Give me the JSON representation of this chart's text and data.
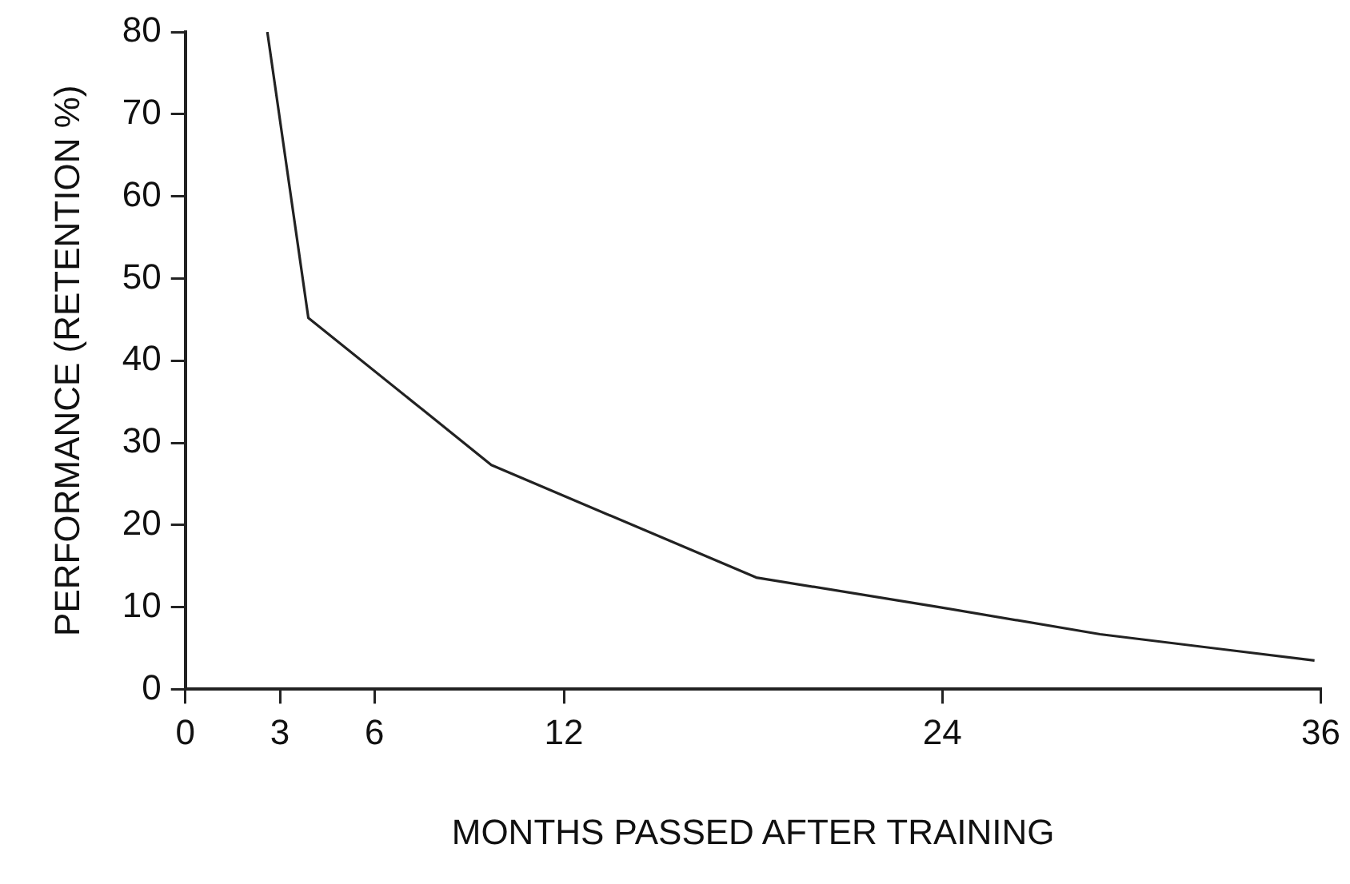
{
  "chart_data": {
    "type": "line",
    "xlabel": "MONTHS PASSED AFTER TRAINING",
    "ylabel": "PERFORMANCE (RETENTION %)",
    "x": [
      2.6,
      3.9,
      7.5,
      9.7,
      18.1,
      23.9,
      29.0,
      35.8
    ],
    "series": [
      {
        "color": "#222222",
        "values": [
          80,
          45.2,
          34.1,
          27.3,
          13.6,
          10.0,
          6.7,
          3.5
        ]
      }
    ],
    "xlim": [
      0,
      36
    ],
    "xticks": [
      0,
      3,
      6,
      12,
      24,
      36
    ],
    "ylim": [
      0,
      80
    ],
    "yticks": [
      0,
      10,
      20,
      30,
      40,
      50,
      60,
      70,
      80
    ],
    "grid": false,
    "legend": false,
    "marker": "none",
    "line_style": "solid"
  }
}
